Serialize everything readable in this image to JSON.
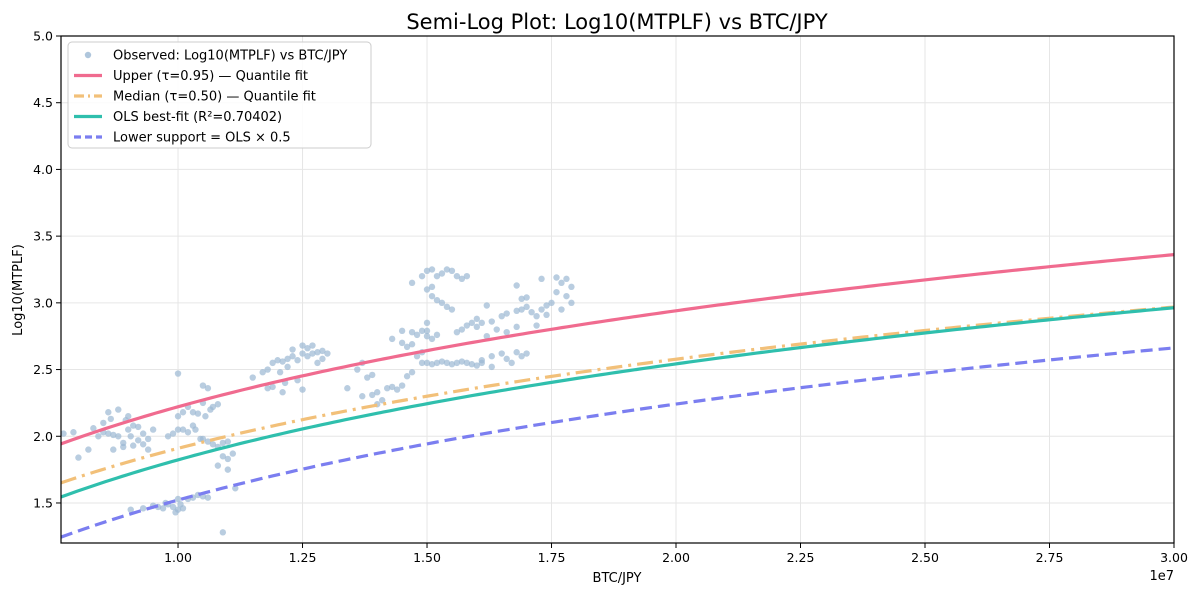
{
  "chart_data": {
    "type": "line",
    "title": "Semi-Log Plot: Log10(MTPLF) vs BTC/JPY",
    "xlabel": "BTC/JPY",
    "ylabel": "Log10(MTPLF)",
    "x_offset_label": "1e7",
    "xlim": [
      7650000,
      30000000
    ],
    "ylim": [
      1.2,
      5.0
    ],
    "x_ticks": [
      10000000,
      12500000,
      15000000,
      17500000,
      20000000,
      22500000,
      25000000,
      27500000,
      30000000
    ],
    "x_tick_labels": [
      "1.00",
      "1.25",
      "1.50",
      "1.75",
      "2.00",
      "2.25",
      "2.50",
      "2.75",
      "3.00"
    ],
    "y_ticks": [
      1.5,
      2.0,
      2.5,
      3.0,
      3.5,
      4.0,
      4.5,
      5.0
    ],
    "y_tick_labels": [
      "1.5",
      "2.0",
      "2.5",
      "3.0",
      "3.5",
      "4.0",
      "4.5",
      "5.0"
    ],
    "grid": true,
    "legend_position": "top-left",
    "series": [
      {
        "name": "Observed: Log10(MTPLF) vs BTC/JPY",
        "kind": "scatter",
        "color": "#9bb8d3",
        "points": [
          [
            7700000,
            2.02
          ],
          [
            7900000,
            2.03
          ],
          [
            8000000,
            1.84
          ],
          [
            8200000,
            1.9
          ],
          [
            8300000,
            2.06
          ],
          [
            8400000,
            2.0
          ],
          [
            8500000,
            2.03
          ],
          [
            8600000,
            2.02
          ],
          [
            8700000,
            2.01
          ],
          [
            8800000,
            2.0
          ],
          [
            8900000,
            1.95
          ],
          [
            9000000,
            2.05
          ],
          [
            9100000,
            2.08
          ],
          [
            9200000,
            2.07
          ],
          [
            9300000,
            2.02
          ],
          [
            9400000,
            1.98
          ],
          [
            9500000,
            2.05
          ],
          [
            8600000,
            2.18
          ],
          [
            8800000,
            2.2
          ],
          [
            9000000,
            2.15
          ],
          [
            9200000,
            1.97
          ],
          [
            8700000,
            1.9
          ],
          [
            8900000,
            1.92
          ],
          [
            9100000,
            1.93
          ],
          [
            9300000,
            1.94
          ],
          [
            9400000,
            1.9
          ],
          [
            8500000,
            2.1
          ],
          [
            8650000,
            2.13
          ],
          [
            8950000,
            2.12
          ],
          [
            9050000,
            2.0
          ],
          [
            9050000,
            1.45
          ],
          [
            9300000,
            1.46
          ],
          [
            9500000,
            1.48
          ],
          [
            9600000,
            1.47
          ],
          [
            9700000,
            1.46
          ],
          [
            9800000,
            1.49
          ],
          [
            9900000,
            1.47
          ],
          [
            10000000,
            1.45
          ],
          [
            10050000,
            1.49
          ],
          [
            9750000,
            1.5
          ],
          [
            10000000,
            1.53
          ],
          [
            10200000,
            1.53
          ],
          [
            10300000,
            1.54
          ],
          [
            10400000,
            1.56
          ],
          [
            10500000,
            1.55
          ],
          [
            10600000,
            1.54
          ],
          [
            10100000,
            1.46
          ],
          [
            9950000,
            1.43
          ],
          [
            9800000,
            2.0
          ],
          [
            9900000,
            2.02
          ],
          [
            10000000,
            2.05
          ],
          [
            10100000,
            2.05
          ],
          [
            10200000,
            2.03
          ],
          [
            10300000,
            2.08
          ],
          [
            10000000,
            2.15
          ],
          [
            10100000,
            2.18
          ],
          [
            10200000,
            2.22
          ],
          [
            10300000,
            2.18
          ],
          [
            10400000,
            2.17
          ],
          [
            10500000,
            2.25
          ],
          [
            10000000,
            2.47
          ],
          [
            10500000,
            2.38
          ],
          [
            10600000,
            2.36
          ],
          [
            10700000,
            2.22
          ],
          [
            10800000,
            2.24
          ],
          [
            10650000,
            2.2
          ],
          [
            10550000,
            2.15
          ],
          [
            10500000,
            1.98
          ],
          [
            10600000,
            1.96
          ],
          [
            10700000,
            1.94
          ],
          [
            10800000,
            1.92
          ],
          [
            10900000,
            1.95
          ],
          [
            11000000,
            1.96
          ],
          [
            10900000,
            1.85
          ],
          [
            11000000,
            1.83
          ],
          [
            10800000,
            1.78
          ],
          [
            11100000,
            1.87
          ],
          [
            11000000,
            1.75
          ],
          [
            11150000,
            1.61
          ],
          [
            10900000,
            1.28
          ],
          [
            10450000,
            1.98
          ],
          [
            10350000,
            2.05
          ],
          [
            11500000,
            2.44
          ],
          [
            11700000,
            2.48
          ],
          [
            11800000,
            2.5
          ],
          [
            11900000,
            2.55
          ],
          [
            12000000,
            2.57
          ],
          [
            12100000,
            2.56
          ],
          [
            12200000,
            2.58
          ],
          [
            12300000,
            2.6
          ],
          [
            12400000,
            2.57
          ],
          [
            12500000,
            2.62
          ],
          [
            12600000,
            2.6
          ],
          [
            12700000,
            2.62
          ],
          [
            12800000,
            2.63
          ],
          [
            12900000,
            2.64
          ],
          [
            13000000,
            2.62
          ],
          [
            12300000,
            2.65
          ],
          [
            12500000,
            2.68
          ],
          [
            12600000,
            2.66
          ],
          [
            12200000,
            2.52
          ],
          [
            12050000,
            2.48
          ],
          [
            12400000,
            2.42
          ],
          [
            12500000,
            2.35
          ],
          [
            11800000,
            2.36
          ],
          [
            11900000,
            2.37
          ],
          [
            12100000,
            2.33
          ],
          [
            12150000,
            2.4
          ],
          [
            12800000,
            2.55
          ],
          [
            12900000,
            2.58
          ],
          [
            12700000,
            2.68
          ],
          [
            13400000,
            2.36
          ],
          [
            13700000,
            2.3
          ],
          [
            13900000,
            2.31
          ],
          [
            14000000,
            2.33
          ],
          [
            14200000,
            2.36
          ],
          [
            14300000,
            2.37
          ],
          [
            14400000,
            2.35
          ],
          [
            14500000,
            2.38
          ],
          [
            14100000,
            2.27
          ],
          [
            14000000,
            2.24
          ],
          [
            13800000,
            2.44
          ],
          [
            13900000,
            2.46
          ],
          [
            13600000,
            2.5
          ],
          [
            13700000,
            2.55
          ],
          [
            14600000,
            2.45
          ],
          [
            14800000,
            2.6
          ],
          [
            14900000,
            2.63
          ],
          [
            14800000,
            2.76
          ],
          [
            14900000,
            2.79
          ],
          [
            15000000,
            2.75
          ],
          [
            15100000,
            2.73
          ],
          [
            15200000,
            2.76
          ],
          [
            15000000,
            2.79
          ],
          [
            14700000,
            2.78
          ],
          [
            14500000,
            2.79
          ],
          [
            14700000,
            2.69
          ],
          [
            14600000,
            2.67
          ],
          [
            14300000,
            2.73
          ],
          [
            14500000,
            2.7
          ],
          [
            14700000,
            2.48
          ],
          [
            14900000,
            2.55
          ],
          [
            15000000,
            2.55
          ],
          [
            15100000,
            2.54
          ],
          [
            15200000,
            2.55
          ],
          [
            15300000,
            2.56
          ],
          [
            15400000,
            2.55
          ],
          [
            15500000,
            2.54
          ],
          [
            15600000,
            2.55
          ],
          [
            15700000,
            2.56
          ],
          [
            15800000,
            2.55
          ],
          [
            15900000,
            2.54
          ],
          [
            16000000,
            2.53
          ],
          [
            16100000,
            2.55
          ],
          [
            14700000,
            3.15
          ],
          [
            14900000,
            3.2
          ],
          [
            15000000,
            3.24
          ],
          [
            15100000,
            3.25
          ],
          [
            15200000,
            3.2
          ],
          [
            15300000,
            3.22
          ],
          [
            15400000,
            3.25
          ],
          [
            15500000,
            3.24
          ],
          [
            15600000,
            3.2
          ],
          [
            15700000,
            3.18
          ],
          [
            15800000,
            3.2
          ],
          [
            15000000,
            3.1
          ],
          [
            15100000,
            3.05
          ],
          [
            15200000,
            3.02
          ],
          [
            15300000,
            3.0
          ],
          [
            15400000,
            2.97
          ],
          [
            15500000,
            2.95
          ],
          [
            15100000,
            3.12
          ],
          [
            15000000,
            2.85
          ],
          [
            15600000,
            2.78
          ],
          [
            15700000,
            2.8
          ],
          [
            15800000,
            2.83
          ],
          [
            15900000,
            2.85
          ],
          [
            16000000,
            2.82
          ],
          [
            16100000,
            2.85
          ],
          [
            16300000,
            2.86
          ],
          [
            16500000,
            2.9
          ],
          [
            16600000,
            2.92
          ],
          [
            16800000,
            2.94
          ],
          [
            16900000,
            2.95
          ],
          [
            17000000,
            2.97
          ],
          [
            16200000,
            2.98
          ],
          [
            16000000,
            2.88
          ],
          [
            16400000,
            2.8
          ],
          [
            16800000,
            2.82
          ],
          [
            16600000,
            2.78
          ],
          [
            17200000,
            2.83
          ],
          [
            16200000,
            2.75
          ],
          [
            16300000,
            2.6
          ],
          [
            16500000,
            2.62
          ],
          [
            16600000,
            2.58
          ],
          [
            16800000,
            2.63
          ],
          [
            16900000,
            2.6
          ],
          [
            17000000,
            2.62
          ],
          [
            16100000,
            2.57
          ],
          [
            16300000,
            2.52
          ],
          [
            16700000,
            2.55
          ],
          [
            16800000,
            3.13
          ],
          [
            16900000,
            3.03
          ],
          [
            17100000,
            2.93
          ],
          [
            17300000,
            2.95
          ],
          [
            17400000,
            2.98
          ],
          [
            17500000,
            3.0
          ],
          [
            17600000,
            3.08
          ],
          [
            17700000,
            3.15
          ],
          [
            17800000,
            3.18
          ],
          [
            17900000,
            3.12
          ],
          [
            17300000,
            3.18
          ],
          [
            17600000,
            3.19
          ],
          [
            17800000,
            3.05
          ],
          [
            17900000,
            3.0
          ],
          [
            17200000,
            2.9
          ],
          [
            17400000,
            2.91
          ],
          [
            17000000,
            3.04
          ],
          [
            17700000,
            2.95
          ]
        ]
      },
      {
        "name": "Upper (τ=0.95) — Quantile fit",
        "kind": "line",
        "style": "solid",
        "color": "#f06b8f",
        "width": 3.2,
        "a": 1.943,
        "b": 2.39,
        "x0": 7650000
      },
      {
        "name": "Median (τ=0.50) — Quantile fit",
        "kind": "line",
        "style": "dashdot",
        "color": "#f2c079",
        "width": 3.2,
        "a": 1.651,
        "b": 2.22,
        "x0": 7650000
      },
      {
        "name": "OLS best-fit (R²=0.70402)",
        "kind": "line",
        "style": "solid",
        "color": "#2fbfad",
        "width": 3.2,
        "a": 1.545,
        "b": 2.39,
        "x0": 7650000
      },
      {
        "name": "Lower support = OLS × 0.5",
        "kind": "line",
        "style": "dashed",
        "color": "#7b7ef0",
        "width": 3.2,
        "a": 1.244,
        "b": 2.39,
        "x0": 7650000
      }
    ]
  }
}
